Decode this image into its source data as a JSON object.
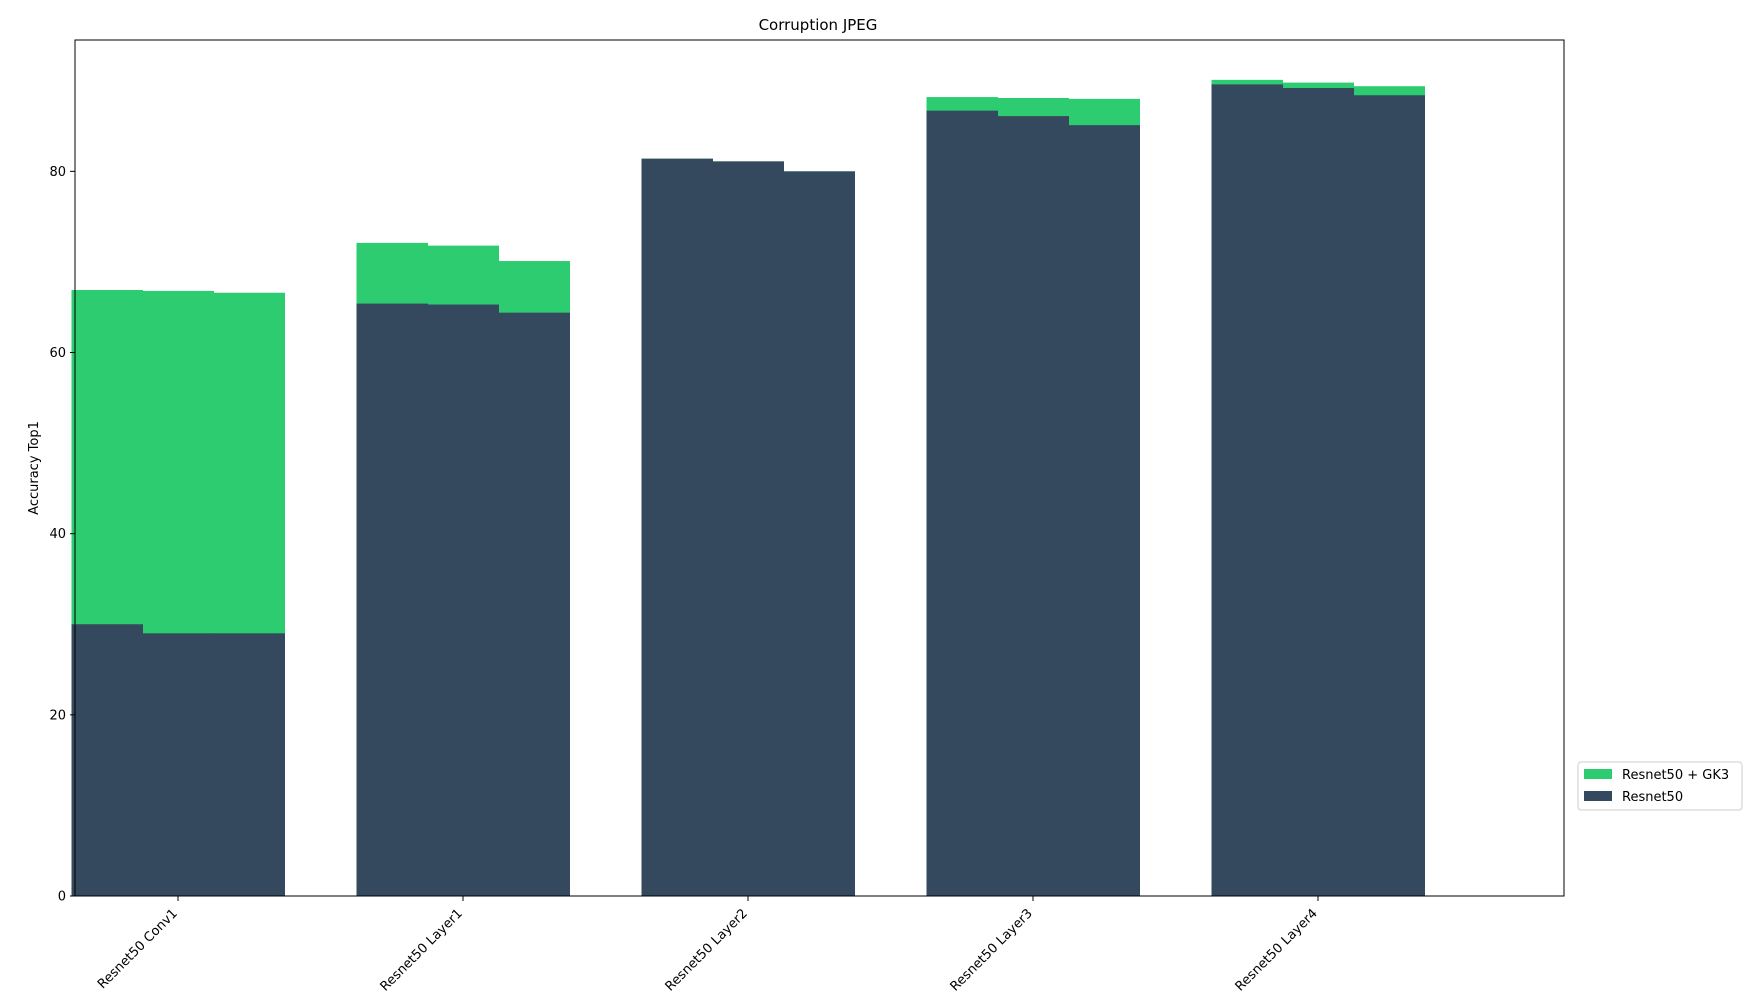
{
  "chart_data": {
    "type": "bar",
    "title": "Corruption JPEG",
    "xlabel": "",
    "ylabel": "Accuracy Top1",
    "ylim": [
      0,
      94.5
    ],
    "yticks": [
      0,
      20,
      40,
      60,
      80
    ],
    "categories": [
      "Resnet50 Conv1",
      "Resnet50 Layer1",
      "Resnet50 Layer2",
      "Resnet50 Layer3",
      "Resnet50 Layer4"
    ],
    "bars_per_category": 3,
    "grid": false,
    "legend_position": "outside right, lower",
    "series": [
      {
        "name": "Resnet50 + GK3",
        "color": "#2ecc71",
        "values": [
          [
            66.9,
            66.8,
            66.6
          ],
          [
            72.1,
            71.8,
            70.1
          ],
          [
            81.4,
            81.1,
            80.0
          ],
          [
            88.2,
            88.1,
            88.0
          ],
          [
            90.1,
            89.8,
            89.4
          ]
        ]
      },
      {
        "name": "Resnet50",
        "color": "#34495e",
        "values": [
          [
            30.0,
            29.0,
            29.0
          ],
          [
            65.4,
            65.3,
            64.4
          ],
          [
            81.4,
            81.1,
            80.0
          ],
          [
            86.7,
            86.1,
            85.1
          ],
          [
            89.6,
            89.2,
            88.4
          ]
        ]
      }
    ]
  }
}
